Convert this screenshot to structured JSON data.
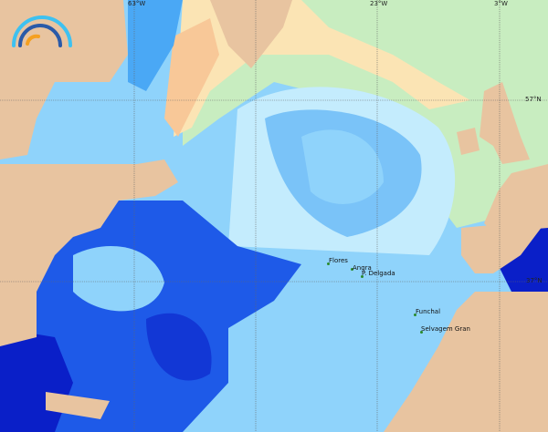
{
  "map": {
    "colors": {
      "land": "#e8c4a0",
      "deep": "#1e5ae8",
      "darkest": "#0a1fc8",
      "mid": "#4aa8f5",
      "light": "#8fd3fb",
      "pale": "#c4ecfd",
      "green": "#c8edc0",
      "yellow": "#fbe4b4",
      "orange": "#f8c898"
    },
    "longitude_labels": [
      "63°W",
      "23°W",
      "3°W"
    ],
    "latitude_labels": [
      "57°N",
      "37°N"
    ],
    "places": [
      "Flores",
      "Angra",
      "P. Delgada",
      "Funchal",
      "Selvagem Gran"
    ],
    "logo": "arc-logo-icon"
  }
}
